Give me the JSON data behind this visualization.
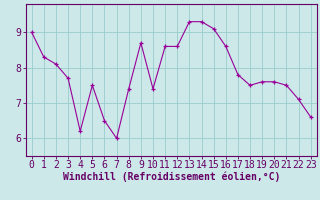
{
  "x": [
    0,
    1,
    2,
    3,
    4,
    5,
    6,
    7,
    8,
    9,
    10,
    11,
    12,
    13,
    14,
    15,
    16,
    17,
    18,
    19,
    20,
    21,
    22,
    23
  ],
  "y": [
    9.0,
    8.3,
    8.1,
    7.7,
    6.2,
    7.5,
    6.5,
    6.0,
    7.4,
    8.7,
    7.4,
    8.6,
    8.6,
    9.3,
    9.3,
    9.1,
    8.6,
    7.8,
    7.5,
    7.6,
    7.6,
    7.5,
    7.1,
    6.6
  ],
  "line_color": "#990099",
  "marker_color": "#990099",
  "bg_color": "#cce8e8",
  "grid_color": "#99cccc",
  "xlabel": "Windchill (Refroidissement éolien,°C)",
  "ylim": [
    5.5,
    9.8
  ],
  "xlim": [
    -0.5,
    23.5
  ],
  "yticks": [
    6,
    7,
    8,
    9
  ],
  "xticks": [
    0,
    1,
    2,
    3,
    4,
    5,
    6,
    7,
    8,
    9,
    10,
    11,
    12,
    13,
    14,
    15,
    16,
    17,
    18,
    19,
    20,
    21,
    22,
    23
  ],
  "axis_color": "#660066",
  "tick_color": "#660066",
  "xlabel_color": "#660066",
  "xlabel_fontsize": 7,
  "tick_fontsize": 7
}
